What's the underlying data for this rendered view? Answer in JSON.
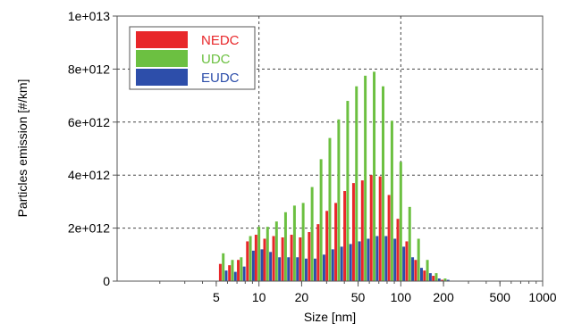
{
  "chart_data": {
    "type": "bar",
    "title": "",
    "xlabel": "Size [nm]",
    "ylabel": "Particles emission [#/km]",
    "xscale": "log",
    "xlim": [
      1,
      1000
    ],
    "ylim": [
      0,
      10000000000000.0
    ],
    "grid": "dashed at major x and y ticks",
    "legend_position": "top-left",
    "x_ticks": [
      {
        "value": 5,
        "label": "5"
      },
      {
        "value": 10,
        "label": "10"
      },
      {
        "value": 20,
        "label": "20"
      },
      {
        "value": 50,
        "label": "50"
      },
      {
        "value": 100,
        "label": "100"
      },
      {
        "value": 200,
        "label": "200"
      },
      {
        "value": 500,
        "label": "500"
      },
      {
        "value": 1000,
        "label": "1000"
      }
    ],
    "y_ticks": [
      {
        "value": 0,
        "label": "0"
      },
      {
        "value": 2000000000000.0,
        "label": "2e+012"
      },
      {
        "value": 4000000000000.0,
        "label": "4e+012"
      },
      {
        "value": 6000000000000.0,
        "label": "6e+012"
      },
      {
        "value": 8000000000000.0,
        "label": "8e+012"
      },
      {
        "value": 10000000000000.0,
        "label": "1e+013"
      }
    ],
    "categories": [
      5.6,
      6.5,
      7.5,
      8.7,
      10,
      11.5,
      13.3,
      15.4,
      17.8,
      20.5,
      23.7,
      27.4,
      31.6,
      36.5,
      42.2,
      48.7,
      56.2,
      64.9,
      75,
      86.6,
      100,
      115.5,
      133.4,
      154,
      177.8,
      205.4,
      237.1
    ],
    "series": [
      {
        "name": "NEDC",
        "color": "#e8272a",
        "values": [
          650000000000.0,
          600000000000.0,
          800000000000.0,
          1500000000000.0,
          1750000000000.0,
          1600000000000.0,
          1700000000000.0,
          1650000000000.0,
          1750000000000.0,
          1650000000000.0,
          1850000000000.0,
          2150000000000.0,
          2650000000000.0,
          2950000000000.0,
          3400000000000.0,
          3700000000000.0,
          3800000000000.0,
          4000000000000.0,
          3950000000000.0,
          3250000000000.0,
          2350000000000.0,
          1500000000000.0,
          800000000000.0,
          400000000000.0,
          200000000000.0,
          50000000000.0,
          0
        ]
      },
      {
        "name": "UDC",
        "color": "#6cc041",
        "values": [
          1050000000000.0,
          800000000000.0,
          900000000000.0,
          1700000000000.0,
          2050000000000.0,
          2050000000000.0,
          2250000000000.0,
          2600000000000.0,
          2850000000000.0,
          2950000000000.0,
          3550000000000.0,
          4600000000000.0,
          5400000000000.0,
          6100000000000.0,
          6800000000000.0,
          7350000000000.0,
          7750000000000.0,
          7900000000000.0,
          7350000000000.0,
          6050000000000.0,
          4500000000000.0,
          2800000000000.0,
          1600000000000.0,
          800000000000.0,
          300000000000.0,
          100000000000.0,
          0
        ]
      },
      {
        "name": "EUDC",
        "color": "#2d4eaa",
        "values": [
          400000000000.0,
          350000000000.0,
          550000000000.0,
          1150000000000.0,
          1200000000000.0,
          1100000000000.0,
          900000000000.0,
          900000000000.0,
          900000000000.0,
          850000000000.0,
          850000000000.0,
          1000000000000.0,
          1200000000000.0,
          1300000000000.0,
          1400000000000.0,
          1500000000000.0,
          1600000000000.0,
          1700000000000.0,
          1700000000000.0,
          1600000000000.0,
          1300000000000.0,
          900000000000.0,
          500000000000.0,
          300000000000.0,
          100000000000.0,
          50000000000.0,
          0
        ]
      }
    ]
  }
}
